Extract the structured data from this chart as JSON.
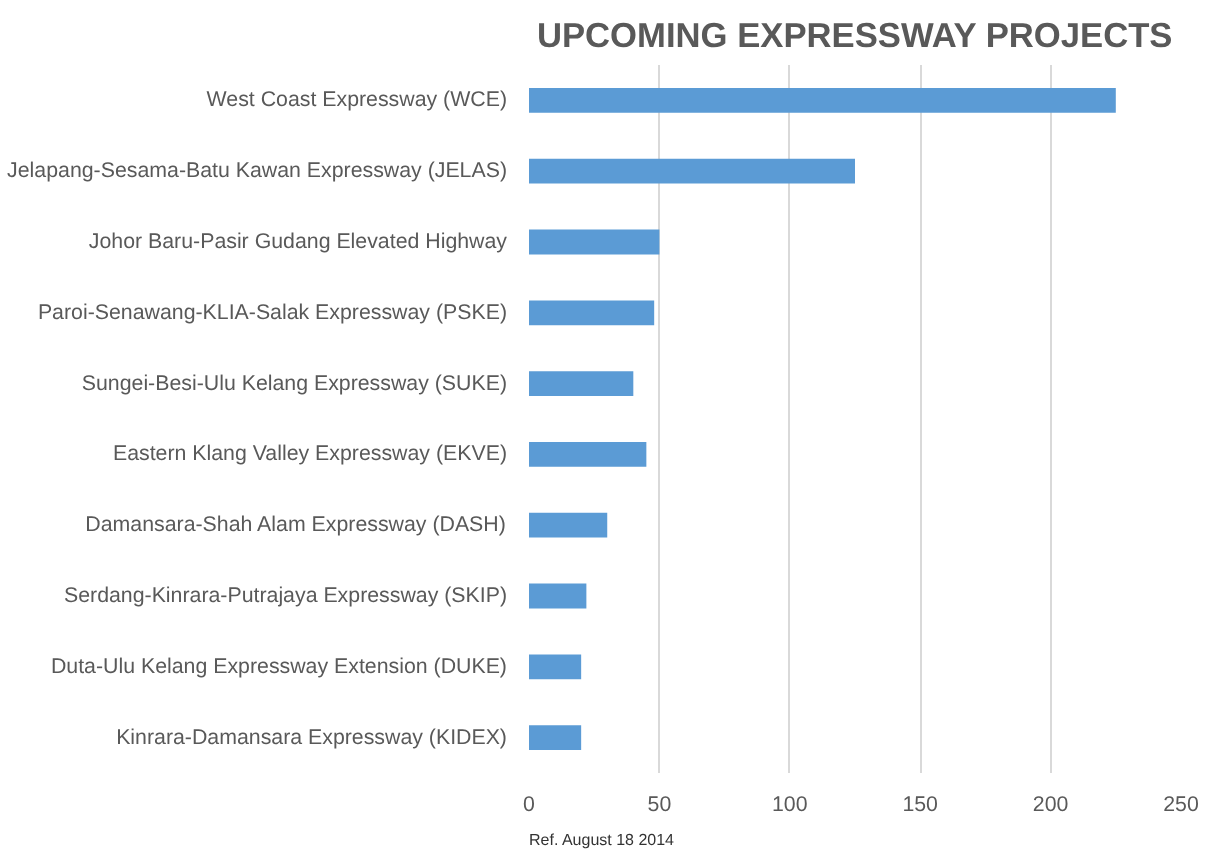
{
  "chart_data": {
    "type": "bar",
    "orientation": "horizontal",
    "title": "UPCOMING EXPRESSWAY PROJECTS",
    "categories": [
      "West Coast Expressway (WCE)",
      "Jelapang-Sesama-Batu Kawan Expressway (JELAS)",
      "Johor Baru-Pasir Gudang Elevated Highway",
      "Paroi-Senawang-KLIA-Salak Expressway (PSKE)",
      "Sungei-Besi-Ulu Kelang Expressway (SUKE)",
      "Eastern Klang Valley Expressway (EKVE)",
      "Damansara-Shah Alam Expressway (DASH)",
      "Serdang-Kinrara-Putrajaya Expressway (SKIP)",
      "Duta-Ulu Kelang Expressway Extension (DUKE)",
      "Kinrara-Damansara Expressway (KIDEX)"
    ],
    "values": [
      225,
      125,
      50,
      48,
      40,
      45,
      30,
      22,
      20,
      20
    ],
    "color": "#5b9bd5",
    "xlim": [
      0,
      250
    ],
    "xticks": [
      0,
      50,
      100,
      150,
      200,
      250
    ],
    "grid": "x",
    "annotations": [
      "Ref. August 18 2014"
    ]
  }
}
